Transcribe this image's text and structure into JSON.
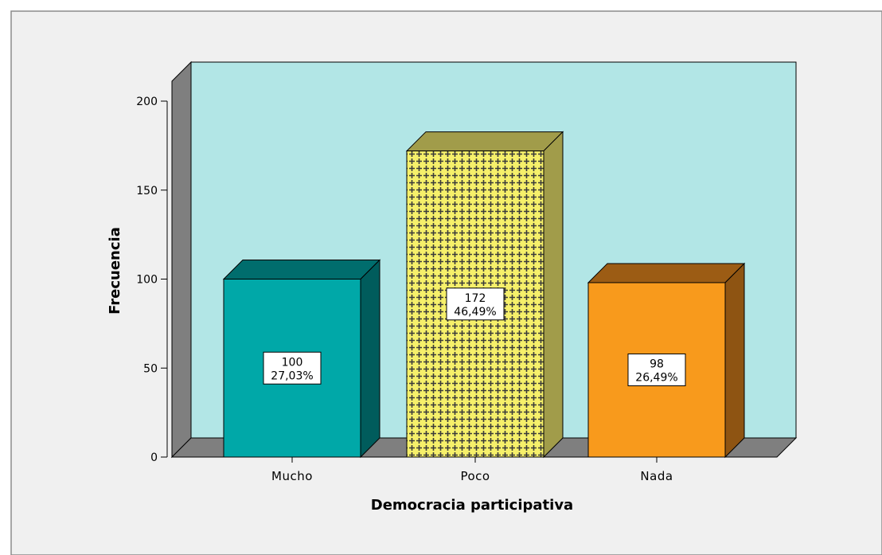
{
  "chart_data": {
    "type": "bar",
    "categories": [
      "Mucho",
      "Poco",
      "Nada"
    ],
    "values": [
      100,
      172,
      98
    ],
    "percent_labels": [
      "27,03%",
      "46,49%",
      "26,49%"
    ],
    "xlabel": "Democracia participativa",
    "ylabel": "Frecuencia",
    "ylim": [
      0,
      200
    ],
    "yticks": [
      0,
      50,
      100,
      150,
      200
    ],
    "grid": false,
    "legend": "none",
    "three_d": true
  },
  "colors": {
    "background": "#f0f0f0",
    "plot_area": "#b2e6e6",
    "wall_dark": "#7f7f7f",
    "bar_fronts": [
      "#00a8a8",
      "#f6f06a",
      "#f89a1c"
    ],
    "bar_tops": [
      "#006d6d",
      "#a19c4a",
      "#9c5c14"
    ],
    "bar_sides": [
      "#005c5c",
      "#a19c4a",
      "#8e5412"
    ],
    "pattern_mark": "#3a3a3a"
  }
}
